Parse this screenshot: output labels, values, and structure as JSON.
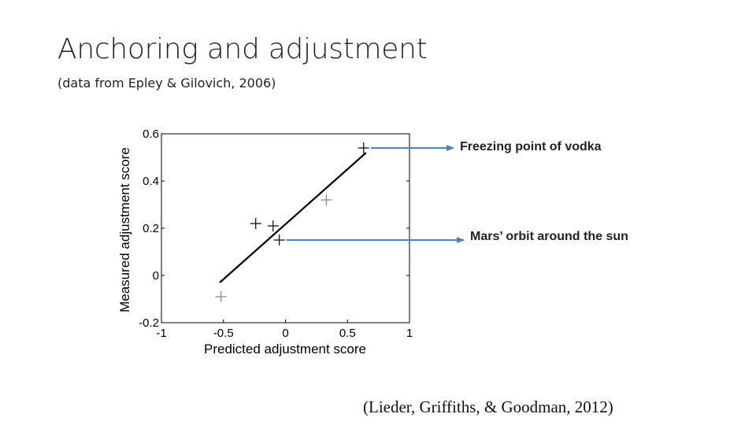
{
  "slide": {
    "title": "Anchoring and adjustment",
    "subtitle": "(data from Epley & Gilovich, 2006)",
    "citation": "(Lieder, Griffiths, & Goodman, 2012)"
  },
  "annotations": {
    "vodka": "Freezing point of vodka",
    "mars": "Mars’ orbit around the sun",
    "arrow_color": "#4f81bd"
  },
  "chart_data": {
    "type": "scatter",
    "title": "",
    "xlabel": "Predicted adjustment score",
    "ylabel": "Measured adjustment score",
    "xlim": [
      -1,
      1
    ],
    "ylim": [
      -0.2,
      0.6
    ],
    "xticks": [
      "-1",
      "-0.5",
      "0",
      "0.5",
      "1"
    ],
    "yticks": [
      "-0.2",
      "0",
      "0.2",
      "0.4",
      "0.6"
    ],
    "points": [
      {
        "x": -0.52,
        "y": -0.09,
        "tone": "light"
      },
      {
        "x": -0.24,
        "y": 0.22,
        "tone": "dark"
      },
      {
        "x": -0.1,
        "y": 0.21,
        "tone": "dark"
      },
      {
        "x": -0.05,
        "y": 0.15,
        "tone": "dark"
      },
      {
        "x": 0.33,
        "y": 0.32,
        "tone": "light"
      },
      {
        "x": 0.63,
        "y": 0.54,
        "tone": "dark"
      }
    ],
    "fit_line": {
      "x": [
        -0.53,
        0.65
      ],
      "y": [
        -0.03,
        0.52
      ]
    },
    "arrows": [
      {
        "from_point": 5,
        "label": "vodka"
      },
      {
        "from_point": 3,
        "label": "mars"
      }
    ],
    "grid": false,
    "legend": "none"
  }
}
